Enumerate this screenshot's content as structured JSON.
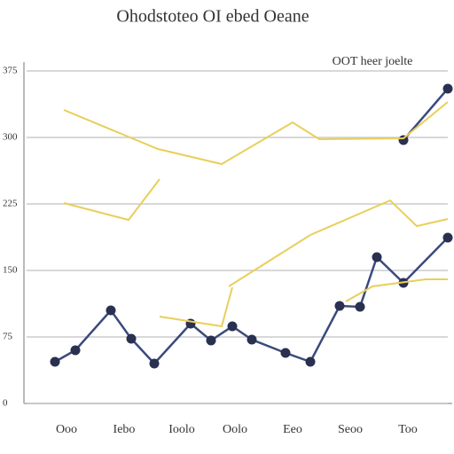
{
  "chart_data": {
    "type": "line",
    "title": "Ohodstoteo OI ebed Oeane",
    "legend_text": "OOT heer joelte",
    "xlim": [
      0,
      475
    ],
    "ylim": [
      0,
      375
    ],
    "xticks": [
      {
        "value": 45,
        "label": "Ooo"
      },
      {
        "value": 110,
        "label": "Iebo"
      },
      {
        "value": 175,
        "label": "Ioolo"
      },
      {
        "value": 235,
        "label": "Oolo"
      },
      {
        "value": 300,
        "label": "Eeo"
      },
      {
        "value": 365,
        "label": "Seoo"
      },
      {
        "value": 430,
        "label": "Too"
      }
    ],
    "yticks": [
      0,
      75,
      150,
      225,
      300,
      375
    ],
    "grid": true,
    "series": [
      {
        "color": "#3a4a7e",
        "x": [
          32,
          55,
          95,
          118,
          144,
          185,
          208,
          232,
          254,
          292,
          320,
          353,
          376,
          395,
          425,
          475,
          null,
          425,
          475
        ],
        "values": [
          47,
          60,
          105,
          73,
          45,
          90,
          71,
          87,
          72,
          57,
          47,
          110,
          109,
          165,
          136,
          187,
          null,
          297,
          355
        ]
      },
      {
        "color": "#e8cf5a",
        "x": [
          42,
          148,
          220,
          300,
          330,
          425,
          475,
          null,
          42,
          115,
          150,
          null,
          150,
          220,
          232,
          null,
          228,
          320,
          410,
          440,
          475,
          null,
          360,
          390,
          450,
          475
        ],
        "values": [
          331,
          287,
          270,
          317,
          298,
          299,
          340,
          null,
          226,
          207,
          253,
          null,
          98,
          87,
          131,
          null,
          132,
          190,
          229,
          200,
          208,
          null,
          115,
          132,
          140,
          140
        ]
      }
    ]
  }
}
